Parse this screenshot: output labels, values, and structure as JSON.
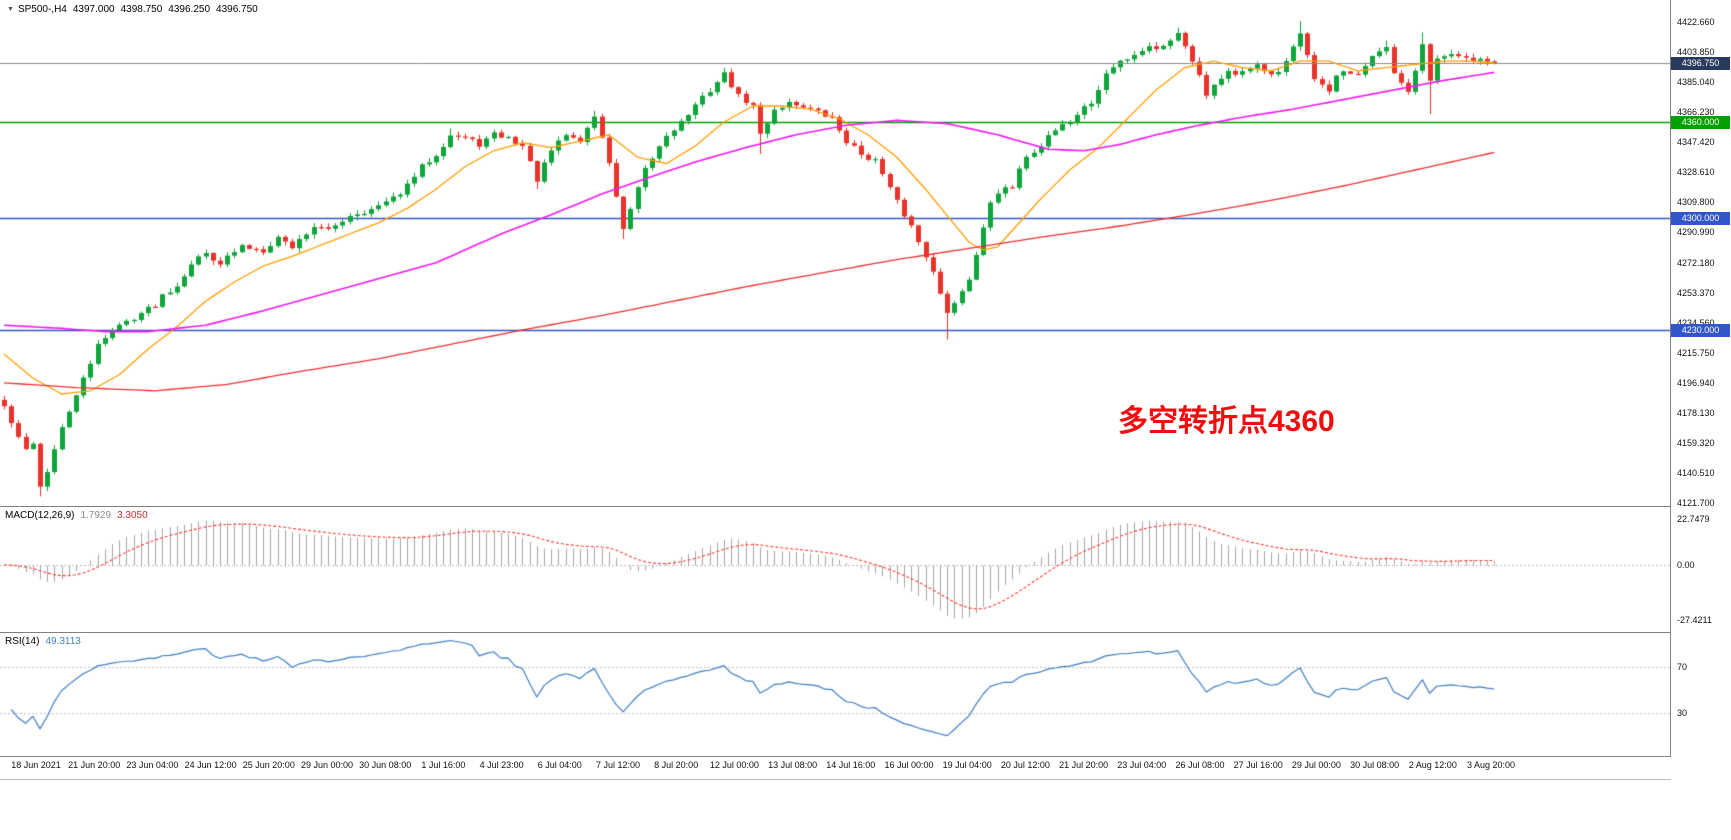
{
  "header": {
    "dropdown_icon": "▼",
    "symbol_period": "SP500-,H4",
    "open": "4397.000",
    "high": "4398.750",
    "low": "4396.250",
    "close": "4396.750"
  },
  "macd_panel": {
    "label": "MACD(12,26,9)",
    "value_main": "1.7929",
    "value_signal": "3.3050",
    "axis_labels": [
      "22.7479",
      "0.00",
      "-27.4211"
    ]
  },
  "rsi_panel": {
    "label": "RSI(14)",
    "value": "49.3113",
    "axis_labels": [
      "70",
      "30"
    ]
  },
  "annotation": {
    "text": "多空转折点4360",
    "color": "#f10d0d"
  },
  "colors": {
    "bull": "#0fa43c",
    "bear": "#e8322a",
    "ma_fast": "#ff9d00",
    "ma_mid": "#f318f3",
    "ma_slow": "#f03030",
    "level_green": "#00a000",
    "level_blue": "#3355cc",
    "current_badge_bg": "#283a5e",
    "macd_hist": "#a6a6a6",
    "macd_signal": "#ff3b30",
    "rsi_line": "#3f7fc4",
    "bid_line": "#8a8a8a",
    "level_dotted": "#bfbfbf",
    "axis_text": "#101010",
    "panel_border": "#7f7f7f"
  },
  "chart_data": {
    "type": "candlestick",
    "symbol": "SP500-",
    "timeframe": "H4",
    "candle_count": 208,
    "last_candle_ohlc": {
      "open": 4397.0,
      "high": 4398.75,
      "low": 4396.25,
      "close": 4396.75
    },
    "y_axis": {
      "price_top": 4436.25,
      "price_bottom": 4120.0,
      "ticks": [
        "4422.660",
        "4403.850",
        "4385.040",
        "4366.230",
        "4347.420",
        "4328.610",
        "4309.800",
        "4290.990",
        "4272.180",
        "4253.370",
        "4234.560",
        "4215.750",
        "4196.940",
        "4178.130",
        "4159.320",
        "4140.510",
        "4121.700"
      ]
    },
    "x_axis_labels": [
      "18 Jun 2021",
      "21 Jun 20:00",
      "23 Jun 04:00",
      "24 Jun 12:00",
      "25 Jun 20:00",
      "29 Jun 00:00",
      "30 Jun 08:00",
      "1 Jul 16:00",
      "4 Jul 23:00",
      "6 Jul 04:00",
      "7 Jul 12:00",
      "8 Jul 20:00",
      "12 Jul 00:00",
      "13 Jul 08:00",
      "14 Jul 16:00",
      "16 Jul 00:00",
      "19 Jul 04:00",
      "20 Jul 12:00",
      "21 Jul 20:00",
      "23 Jul 04:00",
      "26 Jul 08:00",
      "27 Jul 16:00",
      "29 Jul 00:00",
      "30 Jul 08:00",
      "2 Aug 12:00",
      "3 Aug 20:00"
    ],
    "levels": [
      {
        "price": 4360.0,
        "label": "4360.000",
        "color_key": "level_green"
      },
      {
        "price": 4300.0,
        "label": "4300.000",
        "color_key": "level_blue"
      },
      {
        "price": 4230.0,
        "label": "4230.000",
        "color_key": "level_blue"
      }
    ],
    "current_price": {
      "price": 4396.75,
      "label": "4396.750"
    },
    "price_path_anchors": [
      [
        0,
        4182
      ],
      [
        2,
        4162
      ],
      [
        3,
        4155
      ],
      [
        4,
        4160
      ],
      [
        5,
        4132
      ],
      [
        6,
        4142
      ],
      [
        8,
        4168
      ],
      [
        10,
        4190
      ],
      [
        12,
        4208
      ],
      [
        13,
        4222
      ],
      [
        15,
        4230
      ],
      [
        18,
        4238
      ],
      [
        21,
        4246
      ],
      [
        22,
        4252
      ],
      [
        24,
        4258
      ],
      [
        26,
        4272
      ],
      [
        28,
        4278
      ],
      [
        30,
        4272
      ],
      [
        33,
        4282
      ],
      [
        36,
        4280
      ],
      [
        38,
        4288
      ],
      [
        40,
        4282
      ],
      [
        43,
        4295
      ],
      [
        45,
        4292
      ],
      [
        48,
        4302
      ],
      [
        51,
        4305
      ],
      [
        54,
        4312
      ],
      [
        56,
        4320
      ],
      [
        58,
        4332
      ],
      [
        60,
        4340
      ],
      [
        62,
        4352
      ],
      [
        64,
        4350
      ],
      [
        66,
        4346
      ],
      [
        68,
        4352
      ],
      [
        70,
        4350
      ],
      [
        72,
        4345
      ],
      [
        74,
        4324
      ],
      [
        76,
        4342
      ],
      [
        78,
        4352
      ],
      [
        80,
        4348
      ],
      [
        82,
        4364
      ],
      [
        84,
        4335
      ],
      [
        86,
        4292
      ],
      [
        87,
        4305
      ],
      [
        89,
        4330
      ],
      [
        92,
        4352
      ],
      [
        94,
        4360
      ],
      [
        96,
        4370
      ],
      [
        98,
        4380
      ],
      [
        100,
        4390
      ],
      [
        102,
        4376
      ],
      [
        104,
        4370
      ],
      [
        105,
        4352
      ],
      [
        107,
        4368
      ],
      [
        109,
        4372
      ],
      [
        111,
        4370
      ],
      [
        113,
        4366
      ],
      [
        115,
        4362
      ],
      [
        117,
        4348
      ],
      [
        119,
        4340
      ],
      [
        121,
        4336
      ],
      [
        123,
        4318
      ],
      [
        125,
        4302
      ],
      [
        126,
        4295
      ],
      [
        127,
        4285
      ],
      [
        129,
        4268
      ],
      [
        130,
        4252
      ],
      [
        131,
        4240
      ],
      [
        133,
        4255
      ],
      [
        134,
        4262
      ],
      [
        136,
        4295
      ],
      [
        137,
        4308
      ],
      [
        138,
        4315
      ],
      [
        140,
        4320
      ],
      [
        141,
        4332
      ],
      [
        142,
        4338
      ],
      [
        144,
        4345
      ],
      [
        145,
        4352
      ],
      [
        147,
        4358
      ],
      [
        148,
        4360
      ],
      [
        149,
        4365
      ],
      [
        151,
        4372
      ],
      [
        152,
        4380
      ],
      [
        153,
        4390
      ],
      [
        155,
        4398
      ],
      [
        156,
        4400
      ],
      [
        158,
        4405
      ],
      [
        159,
        4408
      ],
      [
        160,
        4405
      ],
      [
        162,
        4412
      ],
      [
        163,
        4415
      ],
      [
        164,
        4408
      ],
      [
        166,
        4390
      ],
      [
        167,
        4378
      ],
      [
        169,
        4388
      ],
      [
        170,
        4392
      ],
      [
        171,
        4390
      ],
      [
        173,
        4392
      ],
      [
        174,
        4395
      ],
      [
        175,
        4392
      ],
      [
        177,
        4390
      ],
      [
        178,
        4398
      ],
      [
        180,
        4414
      ],
      [
        181,
        4402
      ],
      [
        182,
        4388
      ],
      [
        184,
        4378
      ],
      [
        185,
        4390
      ],
      [
        186,
        4392
      ],
      [
        188,
        4388
      ],
      [
        189,
        4395
      ],
      [
        190,
        4400
      ],
      [
        192,
        4406
      ],
      [
        193,
        4392
      ],
      [
        195,
        4380
      ],
      [
        196,
        4392
      ],
      [
        197,
        4408
      ],
      [
        198,
        4385
      ],
      [
        199,
        4398
      ],
      [
        201,
        4402
      ],
      [
        202,
        4400
      ],
      [
        204,
        4398
      ],
      [
        205,
        4400
      ],
      [
        206,
        4398
      ],
      [
        207,
        4396.75
      ]
    ],
    "wick_overrides": {
      "5": {
        "low": 4126
      },
      "62": {
        "high": 4356
      },
      "74": {
        "low": 4318
      },
      "82": {
        "high": 4367
      },
      "86": {
        "low": 4287
      },
      "100": {
        "high": 4394
      },
      "105": {
        "low": 4340
      },
      "131": {
        "low": 4224
      },
      "163": {
        "high": 4419
      },
      "180": {
        "high": 4423
      },
      "192": {
        "high": 4411
      },
      "197": {
        "high": 4416
      },
      "198": {
        "low": 4365
      }
    },
    "moving_averages": [
      {
        "name": "fast",
        "color_key": "ma_fast",
        "anchors": [
          [
            0,
            4215
          ],
          [
            4,
            4200
          ],
          [
            8,
            4190
          ],
          [
            12,
            4192
          ],
          [
            16,
            4202
          ],
          [
            20,
            4218
          ],
          [
            24,
            4232
          ],
          [
            28,
            4248
          ],
          [
            32,
            4260
          ],
          [
            36,
            4270
          ],
          [
            40,
            4276
          ],
          [
            44,
            4283
          ],
          [
            48,
            4290
          ],
          [
            52,
            4297
          ],
          [
            56,
            4306
          ],
          [
            60,
            4318
          ],
          [
            64,
            4332
          ],
          [
            68,
            4342
          ],
          [
            72,
            4347
          ],
          [
            76,
            4344
          ],
          [
            80,
            4348
          ],
          [
            84,
            4352
          ],
          [
            88,
            4338
          ],
          [
            92,
            4334
          ],
          [
            96,
            4345
          ],
          [
            100,
            4360
          ],
          [
            104,
            4370
          ],
          [
            108,
            4370
          ],
          [
            112,
            4368
          ],
          [
            116,
            4362
          ],
          [
            120,
            4352
          ],
          [
            124,
            4338
          ],
          [
            128,
            4318
          ],
          [
            132,
            4296
          ],
          [
            134,
            4285
          ],
          [
            136,
            4280
          ],
          [
            138,
            4282
          ],
          [
            140,
            4292
          ],
          [
            142,
            4302
          ],
          [
            144,
            4312
          ],
          [
            148,
            4330
          ],
          [
            152,
            4344
          ],
          [
            156,
            4362
          ],
          [
            160,
            4380
          ],
          [
            164,
            4394
          ],
          [
            168,
            4398
          ],
          [
            172,
            4394
          ],
          [
            176,
            4392
          ],
          [
            180,
            4398
          ],
          [
            184,
            4398
          ],
          [
            188,
            4392
          ],
          [
            192,
            4394
          ],
          [
            196,
            4396
          ],
          [
            200,
            4398
          ],
          [
            204,
            4398
          ],
          [
            207,
            4397
          ]
        ]
      },
      {
        "name": "mid",
        "color_key": "ma_mid",
        "anchors": [
          [
            0,
            4233
          ],
          [
            8,
            4231
          ],
          [
            14,
            4229
          ],
          [
            20,
            4229
          ],
          [
            28,
            4233
          ],
          [
            36,
            4242
          ],
          [
            44,
            4252
          ],
          [
            52,
            4262
          ],
          [
            60,
            4272
          ],
          [
            69,
            4290
          ],
          [
            76,
            4302
          ],
          [
            83,
            4315
          ],
          [
            90,
            4326
          ],
          [
            96,
            4335
          ],
          [
            103,
            4344
          ],
          [
            110,
            4352
          ],
          [
            117,
            4358
          ],
          [
            124,
            4361
          ],
          [
            131,
            4359
          ],
          [
            138,
            4352
          ],
          [
            145,
            4343
          ],
          [
            150,
            4342
          ],
          [
            155,
            4346
          ],
          [
            160,
            4352
          ],
          [
            166,
            4358
          ],
          [
            172,
            4363
          ],
          [
            179,
            4368
          ],
          [
            186,
            4374
          ],
          [
            193,
            4380
          ],
          [
            200,
            4386
          ],
          [
            207,
            4391
          ]
        ]
      },
      {
        "name": "slow",
        "color_key": "ma_slow",
        "anchors": [
          [
            0,
            4197
          ],
          [
            10,
            4194
          ],
          [
            21,
            4192
          ],
          [
            31,
            4196
          ],
          [
            41,
            4204
          ],
          [
            52,
            4212
          ],
          [
            62,
            4221
          ],
          [
            72,
            4230
          ],
          [
            83,
            4239
          ],
          [
            93,
            4248
          ],
          [
            103,
            4257
          ],
          [
            114,
            4266
          ],
          [
            124,
            4274
          ],
          [
            134,
            4281
          ],
          [
            144,
            4288
          ],
          [
            155,
            4295
          ],
          [
            166,
            4303
          ],
          [
            176,
            4311
          ],
          [
            186,
            4320
          ],
          [
            196,
            4330
          ],
          [
            207,
            4341
          ]
        ]
      }
    ],
    "macd": {
      "params": [
        12,
        26,
        9
      ],
      "axis_max": 22.7479,
      "axis_min": -27.4211
    },
    "rsi": {
      "period": 14,
      "levels": [
        70,
        30
      ]
    }
  }
}
